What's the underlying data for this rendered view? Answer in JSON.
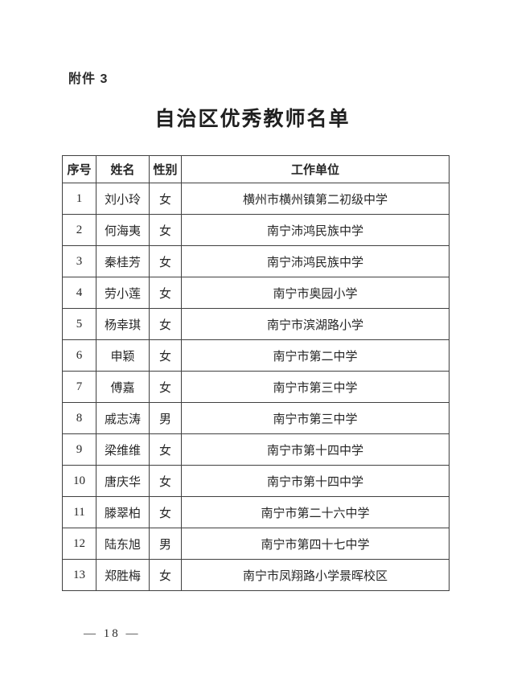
{
  "page": {
    "attachment_label": "附件 3",
    "title": "自治区优秀教师名单",
    "footer_page": "— 18 —"
  },
  "table": {
    "headers": [
      "序号",
      "姓名",
      "性别",
      "工作单位"
    ],
    "rows": [
      {
        "no": "1",
        "name": "刘小玲",
        "gender": "女",
        "unit": "横州市横州镇第二初级中学"
      },
      {
        "no": "2",
        "name": "何海夷",
        "gender": "女",
        "unit": "南宁沛鸿民族中学"
      },
      {
        "no": "3",
        "name": "秦桂芳",
        "gender": "女",
        "unit": "南宁沛鸿民族中学"
      },
      {
        "no": "4",
        "name": "劳小莲",
        "gender": "女",
        "unit": "南宁市奥园小学"
      },
      {
        "no": "5",
        "name": "杨幸琪",
        "gender": "女",
        "unit": "南宁市滨湖路小学"
      },
      {
        "no": "6",
        "name": "申颖",
        "gender": "女",
        "unit": "南宁市第二中学"
      },
      {
        "no": "7",
        "name": "傅嘉",
        "gender": "女",
        "unit": "南宁市第三中学"
      },
      {
        "no": "8",
        "name": "戚志涛",
        "gender": "男",
        "unit": "南宁市第三中学"
      },
      {
        "no": "9",
        "name": "梁维维",
        "gender": "女",
        "unit": "南宁市第十四中学"
      },
      {
        "no": "10",
        "name": "唐庆华",
        "gender": "女",
        "unit": "南宁市第十四中学"
      },
      {
        "no": "11",
        "name": "滕翠柏",
        "gender": "女",
        "unit": "南宁市第二十六中学"
      },
      {
        "no": "12",
        "name": "陆东旭",
        "gender": "男",
        "unit": "南宁市第四十七中学"
      },
      {
        "no": "13",
        "name": "郑胜梅",
        "gender": "女",
        "unit": "南宁市凤翔路小学景晖校区"
      }
    ]
  }
}
